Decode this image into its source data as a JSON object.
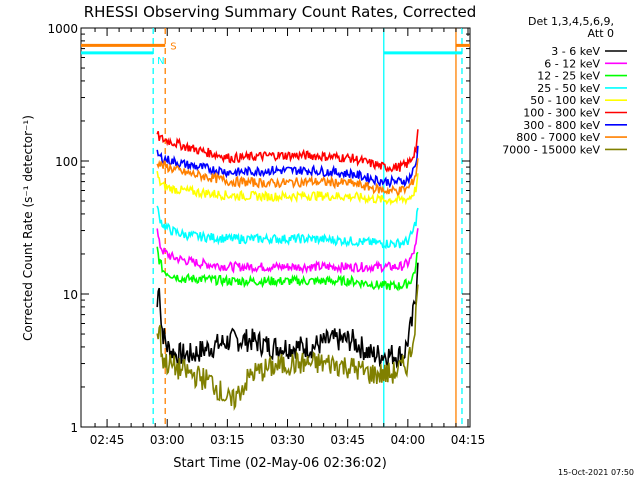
{
  "chart_data": {
    "type": "line",
    "title": "RHESSI Observing Summary Count Rates, Corrected",
    "xlabel": "Start Time (02-May-06 02:36:02)",
    "ylabel": "Corrected Count Rate (s⁻¹ detector⁻¹)",
    "x_unit": "minutes after 02:36:02",
    "xlim": [
      2.5,
      99.5
    ],
    "ylim": [
      1,
      1000
    ],
    "y_scale": "log",
    "x_ticks": [
      {
        "label": "02:45",
        "x": 9
      },
      {
        "label": "03:00",
        "x": 24
      },
      {
        "label": "03:15",
        "x": 39
      },
      {
        "label": "03:30",
        "x": 54
      },
      {
        "label": "03:45",
        "x": 69
      },
      {
        "label": "04:00",
        "x": 84
      },
      {
        "label": "04:15",
        "x": 99
      }
    ],
    "y_ticks": [
      {
        "label": "1",
        "y": 1
      },
      {
        "label": "10",
        "y": 10
      },
      {
        "label": "100",
        "y": 100
      },
      {
        "label": "1000",
        "y": 1000
      }
    ],
    "legend": {
      "title_lines": [
        "Det 1,3,4,5,6,9,",
        "Att 0"
      ],
      "placement": "right outside"
    },
    "series": [
      {
        "name": "3 - 6 keV",
        "color": "#000000",
        "x": [
          21.5,
          22,
          22.5,
          23,
          24,
          26,
          30,
          35,
          40,
          45,
          50,
          55,
          60,
          65,
          70,
          75,
          80,
          83,
          84,
          85,
          86,
          86.5
        ],
        "y": [
          8,
          13,
          6,
          5,
          4,
          3.5,
          3.5,
          4,
          4.5,
          4.5,
          4,
          4,
          4,
          4.5,
          4.5,
          3.5,
          3.5,
          3.5,
          4.5,
          6,
          10,
          20
        ]
      },
      {
        "name": "6 - 12 keV",
        "color": "#ff00ff",
        "x": [
          21.5,
          22,
          23,
          25,
          28,
          32,
          40,
          50,
          60,
          70,
          78,
          82,
          84,
          85,
          86,
          86.5
        ],
        "y": [
          30,
          24,
          21,
          19,
          18,
          17,
          16,
          16,
          16,
          16,
          16,
          16,
          17,
          19,
          23,
          30
        ]
      },
      {
        "name": "12 - 25 keV",
        "color": "#00ff00",
        "x": [
          21.5,
          22,
          23,
          25,
          28,
          32,
          40,
          50,
          60,
          70,
          78,
          82,
          84,
          85,
          86,
          86.5
        ],
        "y": [
          22,
          18,
          15,
          14,
          13,
          13,
          12.5,
          12.5,
          12.5,
          12.5,
          11.5,
          11.5,
          12,
          13,
          16,
          22
        ]
      },
      {
        "name": "25 - 50 keV",
        "color": "#00ffff",
        "x": [
          21.5,
          22,
          23,
          25,
          28,
          32,
          40,
          50,
          60,
          70,
          78,
          82,
          84,
          85,
          86,
          86.5
        ],
        "y": [
          45,
          38,
          33,
          30,
          28,
          27,
          26,
          26,
          26,
          25,
          24,
          24,
          25,
          28,
          35,
          45
        ]
      },
      {
        "name": "50 - 100 keV",
        "color": "#ffff00",
        "x": [
          21.5,
          22,
          23,
          25,
          28,
          32,
          40,
          50,
          60,
          70,
          78,
          82,
          84,
          85,
          86,
          86.5
        ],
        "y": [
          80,
          70,
          65,
          62,
          60,
          58,
          55,
          54,
          55,
          54,
          51,
          51,
          52,
          55,
          62,
          75
        ]
      },
      {
        "name": "100 - 300 keV",
        "color": "#ff0000",
        "x": [
          21.5,
          22,
          23,
          25,
          28,
          32,
          40,
          50,
          60,
          70,
          78,
          82,
          84,
          85,
          86,
          86.5
        ],
        "y": [
          160,
          150,
          145,
          140,
          130,
          120,
          105,
          110,
          110,
          105,
          90,
          90,
          95,
          105,
          125,
          160
        ]
      },
      {
        "name": "300 - 800 keV",
        "color": "#0000ff",
        "x": [
          21.5,
          22,
          23,
          25,
          28,
          32,
          40,
          50,
          60,
          70,
          78,
          82,
          84,
          85,
          86,
          86.5
        ],
        "y": [
          115,
          108,
          105,
          100,
          95,
          90,
          82,
          85,
          85,
          80,
          70,
          70,
          72,
          80,
          95,
          125
        ]
      },
      {
        "name": "800 - 7000 keV",
        "color": "#ff8000",
        "x": [
          21.5,
          22,
          23,
          25,
          28,
          32,
          40,
          50,
          60,
          70,
          78,
          82,
          84,
          85,
          86,
          86.5
        ],
        "y": [
          100,
          95,
          92,
          88,
          82,
          78,
          70,
          68,
          70,
          68,
          60,
          60,
          62,
          68,
          80,
          105
        ]
      },
      {
        "name": "7000 - 15000 keV",
        "color": "#808000",
        "x": [
          21.5,
          22,
          22.5,
          23,
          24,
          26,
          30,
          35,
          40,
          45,
          50,
          55,
          60,
          65,
          70,
          75,
          80,
          84,
          85,
          86,
          86.5
        ],
        "y": [
          4.5,
          6,
          4,
          3.2,
          3,
          2.8,
          2.5,
          2.2,
          1.5,
          2.5,
          2.8,
          3,
          3,
          3,
          2.8,
          2.5,
          2.5,
          3,
          4,
          7,
          12
        ]
      }
    ],
    "annotations": {
      "night_label": "N",
      "saa_label": "S",
      "night_color": "#00ffff",
      "saa_color": "#ff8000",
      "night_boundaries": [
        {
          "x": 20.5,
          "style": "dashed"
        },
        {
          "x": 78.0,
          "style": "solid"
        },
        {
          "x": 97.5,
          "style": "dashed"
        }
      ],
      "saa_boundaries": [
        {
          "x": 23.5,
          "style": "dashed"
        },
        {
          "x": 96.0,
          "style": "solid"
        }
      ],
      "night_bars": [
        {
          "x": [
            2.5,
            20.5
          ],
          "y": 650
        },
        {
          "x": [
            78.0,
            97.5
          ],
          "y": 650
        }
      ],
      "saa_bars": [
        {
          "x": [
            2.5,
            23.5
          ],
          "y": 740
        },
        {
          "x": [
            96.0,
            99.5
          ],
          "y": 740
        }
      ]
    },
    "timestamp": "15-Oct-2021 07:50"
  }
}
